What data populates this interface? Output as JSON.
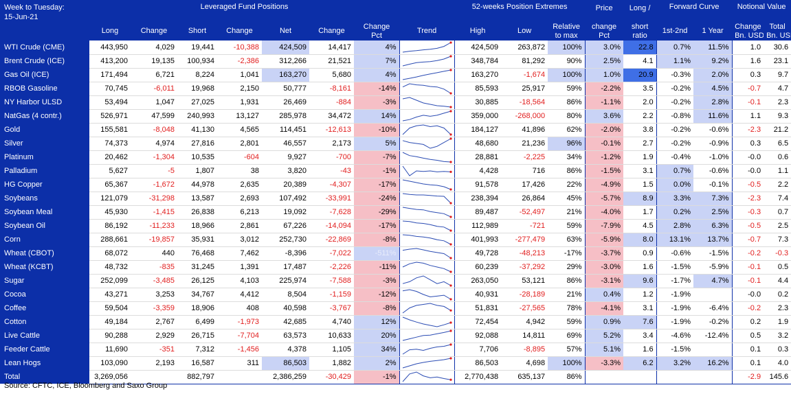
{
  "header": {
    "week_label": "Week to Tuesday:",
    "date": "15-Jun-21",
    "group_lev": "Leveraged Fund Positions",
    "group_52": "52-weeks Position Extremes",
    "col_long": "Long",
    "col_change": "Change",
    "col_short": "Short",
    "col_change2": "Change",
    "col_net": "Net",
    "col_change3": "Change",
    "col_change_pct_1": "Change",
    "col_change_pct_2": "Pct",
    "col_trend": "Trend",
    "col_high": "High",
    "col_low": "Low",
    "col_rel_1": "Relative",
    "col_rel_2": "to max",
    "col_price_1": "Price",
    "col_price_2": "change",
    "col_price_3": "Pct",
    "col_ls_1": "Long /",
    "col_ls_2": "short",
    "col_ls_3": "ratio",
    "group_fc": "Forward Curve",
    "col_fc1": "1st-2nd",
    "col_fc2": "1 Year",
    "group_nv": "Notional Value",
    "col_nv1_1": "Change",
    "col_nv1_2": "Bn. USD",
    "col_nv2_1": "Total",
    "col_nv2_2": "Bn. USD"
  },
  "rows": [
    {
      "name": "WTI Crude (CME)",
      "long": "443,950",
      "chg": "4,029",
      "short": "19,441",
      "chg2": "-10,388",
      "net": "424,509",
      "chg3": "14,417",
      "pct": "4%",
      "high": "424,509",
      "low": "263,872",
      "rel": "100%",
      "price": "3.0%",
      "ls": "22.8",
      "fc1": "0.7%",
      "fc2": "11.5%",
      "nv1": "1.0",
      "nv2": "30.6",
      "trend": [
        40,
        45,
        48,
        52,
        55,
        60,
        70,
        90
      ]
    },
    {
      "name": "Brent Crude (ICE)",
      "long": "413,200",
      "chg": "19,135",
      "short": "100,934",
      "chg2": "-2,386",
      "net": "312,266",
      "chg3": "21,521",
      "pct": "7%",
      "high": "348,784",
      "low": "81,292",
      "rel": "90%",
      "price": "2.5%",
      "ls": "4.1",
      "fc1": "1.1%",
      "fc2": "9.2%",
      "nv1": "1.6",
      "nv2": "23.1",
      "trend": [
        40,
        48,
        55,
        58,
        60,
        65,
        72,
        85
      ]
    },
    {
      "name": "Gas Oil (ICE)",
      "long": "171,494",
      "chg": "6,721",
      "short": "8,224",
      "chg2": "1,041",
      "net": "163,270",
      "chg3": "5,680",
      "pct": "4%",
      "high": "163,270",
      "low": "-1,674",
      "rel": "100%",
      "price": "1.0%",
      "ls": "20.9",
      "fc1": "-0.3%",
      "fc2": "2.0%",
      "nv1": "0.3",
      "nv2": "9.7",
      "trend": [
        20,
        30,
        40,
        52,
        62,
        72,
        82,
        92
      ]
    },
    {
      "name": "RBOB Gasoline",
      "long": "70,745",
      "chg": "-6,011",
      "short": "19,968",
      "chg2": "2,150",
      "net": "50,777",
      "chg3": "-8,161",
      "pct": "-14%",
      "high": "85,593",
      "low": "25,917",
      "rel": "59%",
      "price": "-2.2%",
      "ls": "3.5",
      "fc1": "-0.2%",
      "fc2": "4.5%",
      "nv1": "-0.7",
      "nv2": "4.7",
      "trend": [
        70,
        85,
        80,
        78,
        72,
        70,
        60,
        40
      ]
    },
    {
      "name": "NY Harbor ULSD",
      "long": "53,494",
      "chg": "1,047",
      "short": "27,025",
      "chg2": "1,931",
      "net": "26,469",
      "chg3": "-884",
      "pct": "-3%",
      "high": "30,885",
      "low": "-18,564",
      "rel": "86%",
      "price": "-1.1%",
      "ls": "2.0",
      "fc1": "-0.2%",
      "fc2": "2.8%",
      "nv1": "-0.1",
      "nv2": "2.3",
      "trend": [
        75,
        80,
        70,
        60,
        55,
        50,
        48,
        45
      ]
    },
    {
      "name": "NatGas (4 contr.)",
      "long": "526,971",
      "chg": "47,599",
      "short": "240,993",
      "chg2": "13,127",
      "net": "285,978",
      "chg3": "34,472",
      "pct": "14%",
      "high": "359,000",
      "low": "-268,000",
      "rel": "80%",
      "price": "3.6%",
      "ls": "2.2",
      "fc1": "-0.8%",
      "fc2": "11.6%",
      "nv1": "1.1",
      "nv2": "9.3",
      "trend": [
        40,
        45,
        55,
        62,
        58,
        62,
        70,
        78
      ]
    },
    {
      "name": "Gold",
      "long": "155,581",
      "chg": "-8,048",
      "short": "41,130",
      "chg2": "4,565",
      "net": "114,451",
      "chg3": "-12,613",
      "pct": "-10%",
      "high": "184,127",
      "low": "41,896",
      "rel": "62%",
      "price": "-2.0%",
      "ls": "3.8",
      "fc1": "-0.2%",
      "fc2": "-0.6%",
      "nv1": "-2.3",
      "nv2": "21.2",
      "trend": [
        60,
        75,
        80,
        82,
        78,
        80,
        75,
        60
      ]
    },
    {
      "name": "Silver",
      "long": "74,373",
      "chg": "4,974",
      "short": "27,816",
      "chg2": "2,801",
      "net": "46,557",
      "chg3": "2,173",
      "pct": "5%",
      "high": "48,680",
      "low": "21,236",
      "rel": "96%",
      "price": "-0.1%",
      "ls": "2.7",
      "fc1": "-0.2%",
      "fc2": "-0.9%",
      "nv1": "0.3",
      "nv2": "6.5",
      "trend": [
        70,
        60,
        55,
        50,
        30,
        40,
        60,
        80
      ]
    },
    {
      "name": "Platinum",
      "long": "20,462",
      "chg": "-1,304",
      "short": "10,535",
      "chg2": "-604",
      "net": "9,927",
      "chg3": "-700",
      "pct": "-7%",
      "high": "28,881",
      "low": "-2,225",
      "rel": "34%",
      "price": "-1.2%",
      "ls": "1.9",
      "fc1": "-0.4%",
      "fc2": "-1.0%",
      "nv1": "-0.0",
      "nv2": "0.6",
      "trend": [
        85,
        70,
        65,
        58,
        52,
        48,
        42,
        40
      ]
    },
    {
      "name": "Palladium",
      "long": "5,627",
      "chg": "-5",
      "short": "1,807",
      "chg2": "38",
      "net": "3,820",
      "chg3": "-43",
      "pct": "-1%",
      "high": "4,428",
      "low": "716",
      "rel": "86%",
      "price": "-1.5%",
      "ls": "3.1",
      "fc1": "0.7%",
      "fc2": "-0.6%",
      "nv1": "-0.0",
      "nv2": "1.1",
      "trend": [
        70,
        30,
        50,
        48,
        50,
        46,
        48,
        46
      ]
    },
    {
      "name": "HG Copper",
      "long": "65,367",
      "chg": "-1,672",
      "short": "44,978",
      "chg2": "2,635",
      "net": "20,389",
      "chg3": "-4,307",
      "pct": "-17%",
      "high": "91,578",
      "low": "17,426",
      "rel": "22%",
      "price": "-4.9%",
      "ls": "1.5",
      "fc1": "0.0%",
      "fc2": "-0.1%",
      "nv1": "-0.5",
      "nv2": "2.2",
      "trend": [
        80,
        75,
        70,
        65,
        62,
        60,
        55,
        45
      ]
    },
    {
      "name": "Soybeans",
      "long": "121,079",
      "chg": "-31,298",
      "short": "13,587",
      "chg2": "2,693",
      "net": "107,492",
      "chg3": "-33,991",
      "pct": "-24%",
      "high": "238,394",
      "low": "26,864",
      "rel": "45%",
      "price": "-5.7%",
      "ls": "8.9",
      "fc1": "3.3%",
      "fc2": "7.3%",
      "nv1": "-2.3",
      "nv2": "7.4",
      "trend": [
        75,
        72,
        70,
        70,
        68,
        66,
        65,
        40
      ]
    },
    {
      "name": "Soybean Meal",
      "long": "45,930",
      "chg": "-1,415",
      "short": "26,838",
      "chg2": "6,213",
      "net": "19,092",
      "chg3": "-7,628",
      "pct": "-29%",
      "high": "89,487",
      "low": "-52,497",
      "rel": "21%",
      "price": "-4.0%",
      "ls": "1.7",
      "fc1": "0.2%",
      "fc2": "2.5%",
      "nv1": "-0.3",
      "nv2": "0.7",
      "trend": [
        80,
        75,
        70,
        68,
        60,
        55,
        50,
        35
      ]
    },
    {
      "name": "Soybean Oil",
      "long": "86,192",
      "chg": "-11,233",
      "short": "18,966",
      "chg2": "2,861",
      "net": "67,226",
      "chg3": "-14,094",
      "pct": "-17%",
      "high": "112,989",
      "low": "-721",
      "rel": "59%",
      "price": "-7.9%",
      "ls": "4.5",
      "fc1": "2.8%",
      "fc2": "6.3%",
      "nv1": "-0.5",
      "nv2": "2.5",
      "trend": [
        80,
        78,
        72,
        70,
        65,
        58,
        55,
        40
      ]
    },
    {
      "name": "Corn",
      "long": "288,661",
      "chg": "-19,857",
      "short": "35,931",
      "chg2": "3,012",
      "net": "252,730",
      "chg3": "-22,869",
      "pct": "-8%",
      "high": "401,993",
      "low": "-277,479",
      "rel": "63%",
      "price": "-5.9%",
      "ls": "8.0",
      "fc1": "13.1%",
      "fc2": "13.7%",
      "nv1": "-0.7",
      "nv2": "7.3",
      "trend": [
        80,
        78,
        74,
        72,
        68,
        62,
        58,
        45
      ]
    },
    {
      "name": "Wheat (CBOT)",
      "long": "68,072",
      "chg": "440",
      "short": "76,468",
      "chg2": "7,462",
      "net": "-8,396",
      "chg3": "-7,022",
      "pct": "-511%",
      "high": "49,728",
      "low": "-48,213",
      "rel": "-17%",
      "price": "-3.7%",
      "ls": "0.9",
      "fc1": "-0.6%",
      "fc2": "-1.5%",
      "nv1": "-0.2",
      "nv2": "-0.3",
      "trend": [
        70,
        75,
        78,
        72,
        65,
        60,
        55,
        35
      ]
    },
    {
      "name": "Wheat (KCBT)",
      "long": "48,732",
      "chg": "-835",
      "short": "31,245",
      "chg2": "1,391",
      "net": "17,487",
      "chg3": "-2,226",
      "pct": "-11%",
      "high": "60,239",
      "low": "-37,292",
      "rel": "29%",
      "price": "-3.0%",
      "ls": "1.6",
      "fc1": "-1.5%",
      "fc2": "-5.9%",
      "nv1": "-0.1",
      "nv2": "0.5",
      "trend": [
        60,
        70,
        75,
        72,
        65,
        60,
        55,
        45
      ]
    },
    {
      "name": "Sugar",
      "long": "252,099",
      "chg": "-3,485",
      "short": "26,125",
      "chg2": "4,103",
      "net": "225,974",
      "chg3": "-7,588",
      "pct": "-3%",
      "high": "263,050",
      "low": "53,121",
      "rel": "86%",
      "price": "-3.1%",
      "ls": "9.6",
      "fc1": "-1.7%",
      "fc2": "4.7%",
      "nv1": "-0.1",
      "nv2": "4.4",
      "trend": [
        70,
        72,
        76,
        78,
        74,
        70,
        72,
        68
      ]
    },
    {
      "name": "Cocoa",
      "long": "43,271",
      "chg": "3,253",
      "short": "34,767",
      "chg2": "4,412",
      "net": "8,504",
      "chg3": "-1,159",
      "pct": "-12%",
      "high": "40,931",
      "low": "-28,189",
      "rel": "21%",
      "price": "0.4%",
      "ls": "1.2",
      "fc1": "-1.9%",
      "fc2": "",
      "nv1": "-0.0",
      "nv2": "0.2",
      "trend": [
        70,
        75,
        68,
        55,
        45,
        48,
        52,
        35
      ]
    },
    {
      "name": "Coffee",
      "long": "59,504",
      "chg": "-3,359",
      "short": "18,906",
      "chg2": "408",
      "net": "40,598",
      "chg3": "-3,767",
      "pct": "-8%",
      "high": "51,831",
      "low": "-27,565",
      "rel": "78%",
      "price": "-4.1%",
      "ls": "3.1",
      "fc1": "-1.9%",
      "fc2": "-6.4%",
      "nv1": "-0.2",
      "nv2": "2.3",
      "trend": [
        55,
        65,
        70,
        72,
        74,
        70,
        68,
        60
      ]
    },
    {
      "name": "Cotton",
      "long": "49,184",
      "chg": "2,767",
      "short": "6,499",
      "chg2": "-1,973",
      "net": "42,685",
      "chg3": "4,740",
      "pct": "12%",
      "high": "72,454",
      "low": "4,942",
      "rel": "59%",
      "price": "0.9%",
      "ls": "7.6",
      "fc1": "-1.9%",
      "fc2": "-0.2%",
      "nv1": "0.2",
      "nv2": "1.9",
      "trend": [
        80,
        70,
        62,
        55,
        50,
        45,
        52,
        60
      ]
    },
    {
      "name": "Live Cattle",
      "long": "90,288",
      "chg": "2,929",
      "short": "26,715",
      "chg2": "-7,704",
      "net": "63,573",
      "chg3": "10,633",
      "pct": "20%",
      "high": "92,088",
      "low": "14,811",
      "rel": "69%",
      "price": "5.2%",
      "ls": "3.4",
      "fc1": "-4.6%",
      "fc2": "-12.4%",
      "nv1": "0.5",
      "nv2": "3.2",
      "trend": [
        30,
        40,
        50,
        60,
        62,
        70,
        78,
        88
      ]
    },
    {
      "name": "Feeder Cattle",
      "long": "11,690",
      "chg": "-351",
      "short": "7,312",
      "chg2": "-1,456",
      "net": "4,378",
      "chg3": "1,105",
      "pct": "34%",
      "high": "7,706",
      "low": "-8,895",
      "rel": "57%",
      "price": "5.1%",
      "ls": "1.6",
      "fc1": "-1.5%",
      "fc2": "",
      "nv1": "0.1",
      "nv2": "0.3",
      "trend": [
        35,
        50,
        52,
        48,
        55,
        60,
        62,
        68
      ]
    },
    {
      "name": "Lean Hogs",
      "long": "103,090",
      "chg": "2,193",
      "short": "16,587",
      "chg2": "311",
      "net": "86,503",
      "chg3": "1,882",
      "pct": "2%",
      "high": "86,503",
      "low": "4,698",
      "rel": "100%",
      "price": "-3.3%",
      "ls": "6.2",
      "fc1": "3.2%",
      "fc2": "16.2%",
      "nv1": "0.1",
      "nv2": "4.0",
      "trend": [
        20,
        35,
        50,
        60,
        68,
        74,
        80,
        90
      ]
    }
  ],
  "total": {
    "name": "Total",
    "long": "3,269,056",
    "chg": "",
    "short": "882,797",
    "chg2": "",
    "net": "2,386,259",
    "chg3": "-30,429",
    "pct": "-1%",
    "high": "2,770,438",
    "low": "635,137",
    "rel": "86%",
    "price": "",
    "ls": "",
    "fc1": "",
    "fc2": "",
    "nv1": "-2.9",
    "nv2": "145.6",
    "trend": [
      50,
      70,
      75,
      65,
      60,
      62,
      58,
      55
    ]
  },
  "source": "Source: CFTC, ICE, Bloomberg and Saxo Group",
  "colors": {
    "header_bg": "#0c2fa8",
    "negative": "#e11d1d",
    "pos_fill": "#c9d3f6",
    "neg_fill": "#f6bfc6",
    "strong_fill": "#3f6fe6",
    "spark": "#2a4bb3",
    "spark_end": "#e11d1d"
  }
}
